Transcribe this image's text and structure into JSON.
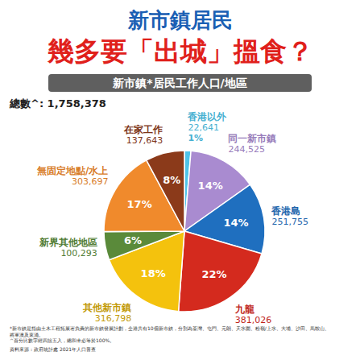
{
  "chart_data": {
    "type": "pie",
    "title": "新市鎮居民",
    "subtitle": "幾多要「出城」搵食？",
    "chart_title": "新市鎮*居民工作人口/地區",
    "annotation": "總數^: 1,758,378",
    "categories": [
      "香港以外",
      "同一新市鎮",
      "香港島",
      "九龍",
      "其他新市鎮",
      "新界其他地區",
      "無固定地點/水上",
      "在家工作"
    ],
    "values": [
      22641,
      244525,
      251755,
      381026,
      316798,
      100293,
      303697,
      137643
    ],
    "value_labels": [
      "22,641",
      "244,525",
      "251,755",
      "381,026",
      "316,798",
      "100,293",
      "303,697",
      "137,643"
    ],
    "percentages": [
      {
        "value": 1,
        "label": "1%"
      },
      {
        "value": 14,
        "label": "14%"
      },
      {
        "value": 14,
        "label": "14%"
      },
      {
        "value": 22,
        "label": "22%"
      },
      {
        "value": 18,
        "label": "18%"
      },
      {
        "value": 6,
        "label": "6%"
      },
      {
        "value": 17,
        "label": "17%"
      },
      {
        "value": 8,
        "label": "8%"
      }
    ],
    "colors": [
      "#4fc3e8",
      "#a98bd0",
      "#1f6fbf",
      "#d42a1e",
      "#f4c20d",
      "#5a8a3a",
      "#f08a2c",
      "#8b3a1a"
    ],
    "data_labels": true,
    "notes": [
      "*新市鎮是指由土木工程拓展署負責的新市鎮發展計劃，全港共有10個新市鎮，分別為荃灣、屯門、元朗、天水圍、粉嶺/上水、大埔、沙田、馬鞍山、將軍澳及東涌。",
      "^百分比數字經四捨五入，總和未必等於100%。"
    ],
    "source": "資料來源：政府統計處 2021年人口普查"
  }
}
